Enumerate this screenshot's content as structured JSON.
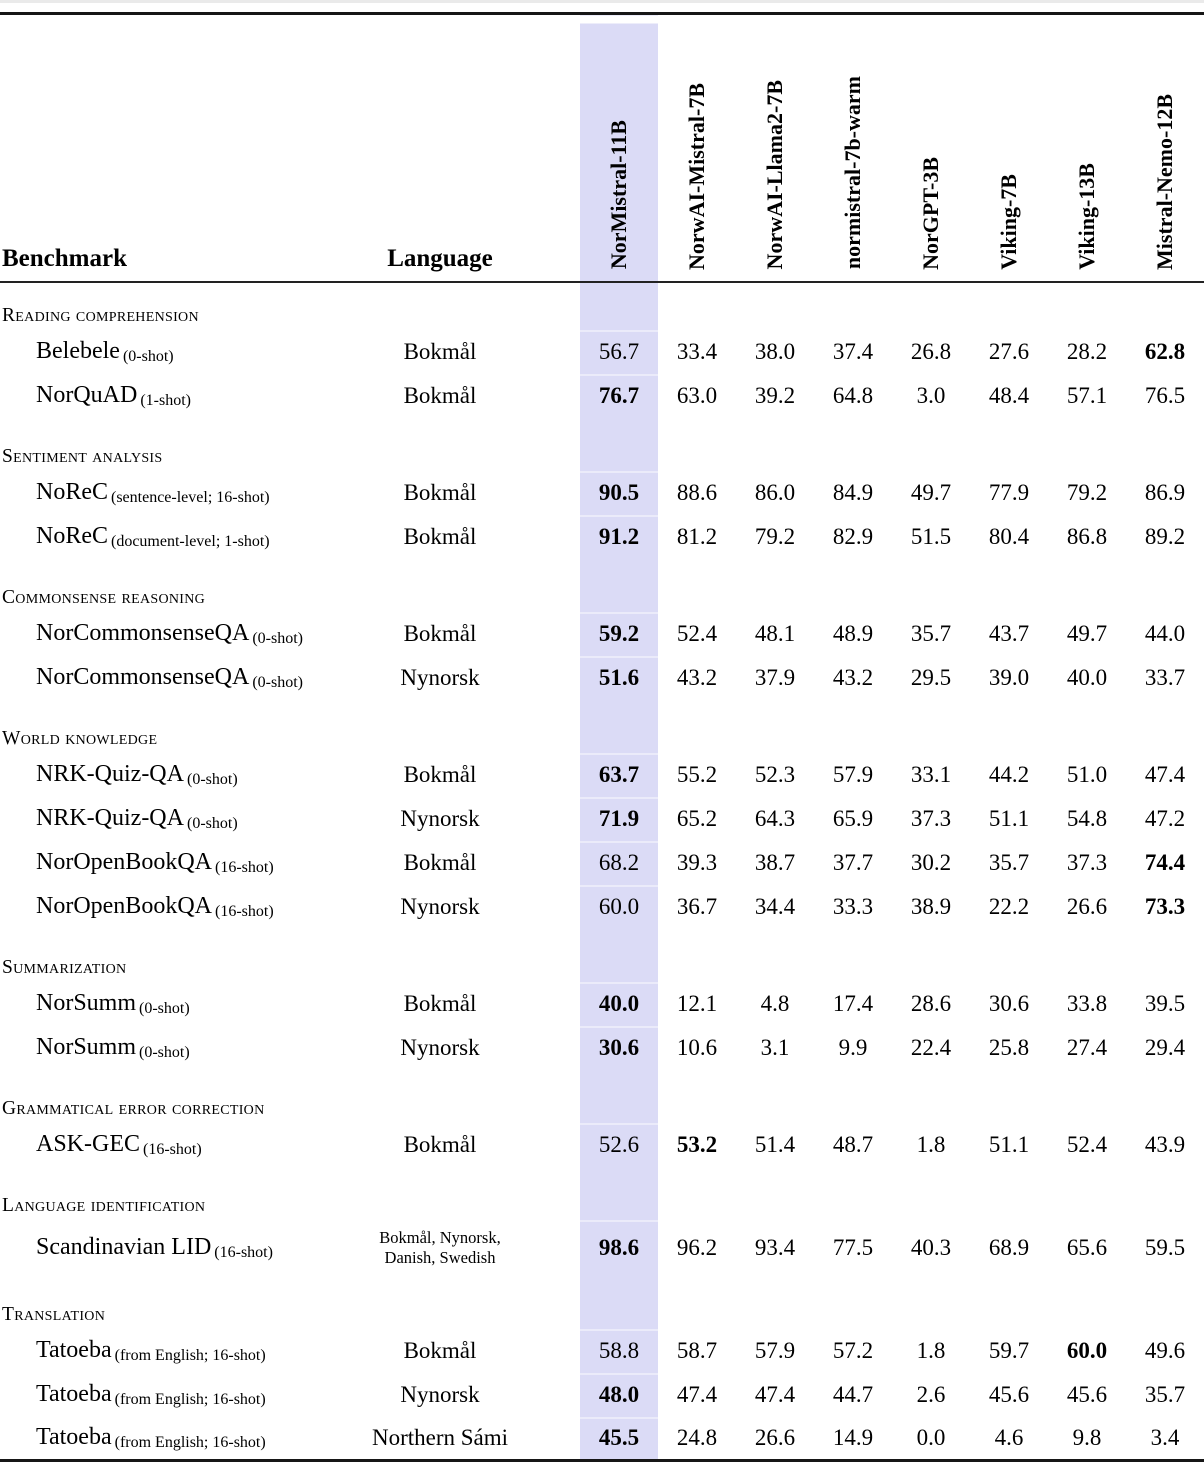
{
  "table": {
    "benchmark_header": "Benchmark",
    "language_header": "Language",
    "highlight_color": "#dbdbf6",
    "highlighted_model": "NorMistral-11B",
    "models": [
      "NorMistral-11B",
      "NorwAI-Mistral-7B",
      "NorwAI-Llama2-7B",
      "normistral-7b-warm",
      "NorGPT-3B",
      "Viking-7B",
      "Viking-13B",
      "Mistral-Nemo-12B"
    ],
    "sections": [
      {
        "title": "Reading comprehension",
        "rows": [
          {
            "benchmark": "Belebele",
            "detail": "(0-shot)",
            "language": "Bokmål",
            "values": [
              "56.7",
              "33.4",
              "38.0",
              "37.4",
              "26.8",
              "27.6",
              "28.2",
              "62.8"
            ],
            "bold": [
              7
            ]
          },
          {
            "benchmark": "NorQuAD",
            "detail": "(1-shot)",
            "language": "Bokmål",
            "values": [
              "76.7",
              "63.0",
              "39.2",
              "64.8",
              "3.0",
              "48.4",
              "57.1",
              "76.5"
            ],
            "bold": [
              0
            ]
          }
        ]
      },
      {
        "title": "Sentiment analysis",
        "rows": [
          {
            "benchmark": "NoReC",
            "detail": "(sentence-level; 16-shot)",
            "language": "Bokmål",
            "values": [
              "90.5",
              "88.6",
              "86.0",
              "84.9",
              "49.7",
              "77.9",
              "79.2",
              "86.9"
            ],
            "bold": [
              0
            ]
          },
          {
            "benchmark": "NoReC",
            "detail": "(document-level; 1-shot)",
            "language": "Bokmål",
            "values": [
              "91.2",
              "81.2",
              "79.2",
              "82.9",
              "51.5",
              "80.4",
              "86.8",
              "89.2"
            ],
            "bold": [
              0
            ]
          }
        ]
      },
      {
        "title": "Commonsense reasoning",
        "rows": [
          {
            "benchmark": "NorCommonsenseQA",
            "detail": "(0-shot)",
            "language": "Bokmål",
            "values": [
              "59.2",
              "52.4",
              "48.1",
              "48.9",
              "35.7",
              "43.7",
              "49.7",
              "44.0"
            ],
            "bold": [
              0
            ]
          },
          {
            "benchmark": "NorCommonsenseQA",
            "detail": "(0-shot)",
            "language": "Nynorsk",
            "values": [
              "51.6",
              "43.2",
              "37.9",
              "43.2",
              "29.5",
              "39.0",
              "40.0",
              "33.7"
            ],
            "bold": [
              0
            ]
          }
        ]
      },
      {
        "title": "World knowledge",
        "rows": [
          {
            "benchmark": "NRK-Quiz-QA",
            "detail": "(0-shot)",
            "language": "Bokmål",
            "values": [
              "63.7",
              "55.2",
              "52.3",
              "57.9",
              "33.1",
              "44.2",
              "51.0",
              "47.4"
            ],
            "bold": [
              0
            ]
          },
          {
            "benchmark": "NRK-Quiz-QA",
            "detail": "(0-shot)",
            "language": "Nynorsk",
            "values": [
              "71.9",
              "65.2",
              "64.3",
              "65.9",
              "37.3",
              "51.1",
              "54.8",
              "47.2"
            ],
            "bold": [
              0
            ]
          },
          {
            "benchmark": "NorOpenBookQA",
            "detail": "(16-shot)",
            "language": "Bokmål",
            "values": [
              "68.2",
              "39.3",
              "38.7",
              "37.7",
              "30.2",
              "35.7",
              "37.3",
              "74.4"
            ],
            "bold": [
              7
            ]
          },
          {
            "benchmark": "NorOpenBookQA",
            "detail": "(16-shot)",
            "language": "Nynorsk",
            "values": [
              "60.0",
              "36.7",
              "34.4",
              "33.3",
              "38.9",
              "22.2",
              "26.6",
              "73.3"
            ],
            "bold": [
              7
            ]
          }
        ]
      },
      {
        "title": "Summarization",
        "rows": [
          {
            "benchmark": "NorSumm",
            "detail": "(0-shot)",
            "language": "Bokmål",
            "values": [
              "40.0",
              "12.1",
              "4.8",
              "17.4",
              "28.6",
              "30.6",
              "33.8",
              "39.5"
            ],
            "bold": [
              0
            ]
          },
          {
            "benchmark": "NorSumm",
            "detail": "(0-shot)",
            "language": "Nynorsk",
            "values": [
              "30.6",
              "10.6",
              "3.1",
              "9.9",
              "22.4",
              "25.8",
              "27.4",
              "29.4"
            ],
            "bold": [
              0
            ]
          }
        ]
      },
      {
        "title": "Grammatical error correction",
        "rows": [
          {
            "benchmark": "ASK-GEC",
            "detail": "(16-shot)",
            "language": "Bokmål",
            "values": [
              "52.6",
              "53.2",
              "51.4",
              "48.7",
              "1.8",
              "51.1",
              "52.4",
              "43.9"
            ],
            "bold": [
              1
            ]
          }
        ]
      },
      {
        "title": "Language identification",
        "rows": [
          {
            "benchmark": "Scandinavian LID",
            "detail": "(16-shot)",
            "language": "Bokmål, Nynorsk,\nDanish, Swedish",
            "language_small": true,
            "tall": true,
            "values": [
              "98.6",
              "96.2",
              "93.4",
              "77.5",
              "40.3",
              "68.9",
              "65.6",
              "59.5"
            ],
            "bold": [
              0
            ]
          }
        ]
      },
      {
        "title": "Translation",
        "rows": [
          {
            "benchmark": "Tatoeba",
            "detail": "(from English; 16-shot)",
            "language": "Bokmål",
            "values": [
              "58.8",
              "58.7",
              "57.9",
              "57.2",
              "1.8",
              "59.7",
              "60.0",
              "49.6"
            ],
            "bold": [
              6
            ]
          },
          {
            "benchmark": "Tatoeba",
            "detail": "(from English; 16-shot)",
            "language": "Nynorsk",
            "values": [
              "48.0",
              "47.4",
              "47.4",
              "44.7",
              "2.6",
              "45.6",
              "45.6",
              "35.7"
            ],
            "bold": [
              0
            ]
          },
          {
            "benchmark": "Tatoeba",
            "detail": "(from English; 16-shot)",
            "language": "Northern Sámi",
            "values": [
              "45.5",
              "24.8",
              "26.6",
              "14.9",
              "0.0",
              "4.6",
              "9.8",
              "3.4"
            ],
            "bold": [
              0
            ]
          }
        ]
      }
    ]
  }
}
